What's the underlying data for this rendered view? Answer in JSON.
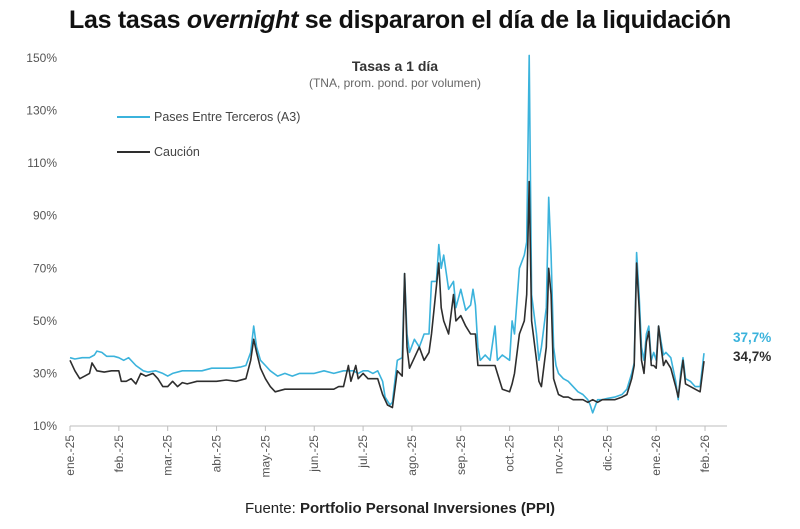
{
  "title": {
    "prefix": "Las tasas ",
    "emph": "overnight",
    "suffix": " se dispararon el día de la liquidación"
  },
  "source": {
    "prefix": "Fuente: ",
    "name": "Portfolio Personal Inversiones (PPI)"
  },
  "chart_data": {
    "type": "line",
    "title": "Tasas a 1 día",
    "subtitle": "(TNA, prom. pond. por volumen)",
    "xlabel": "",
    "ylabel": "",
    "ylim": [
      10,
      150
    ],
    "yticks": [
      10,
      30,
      50,
      70,
      90,
      110,
      130,
      150
    ],
    "ytick_labels": [
      "10%",
      "30%",
      "50%",
      "70%",
      "90%",
      "110%",
      "130%",
      "150%"
    ],
    "xlim": [
      0,
      13.45
    ],
    "xtick_labels": [
      "ene.-25",
      "feb.-25",
      "mar.-25",
      "abr.-25",
      "may.-25",
      "jun.-25",
      "jul.-25",
      "ago.-25",
      "sep.-25",
      "oct.-25",
      "nov.-25",
      "dic.-25",
      "ene.-26",
      "feb.-26"
    ],
    "legend_position": "top-left",
    "series": [
      {
        "name": "Pases Entre Terceros (A3)",
        "color": "#3bb3dc",
        "end_label": "37,7%",
        "points": [
          [
            0.0,
            36
          ],
          [
            0.1,
            35.5
          ],
          [
            0.25,
            36
          ],
          [
            0.4,
            36
          ],
          [
            0.5,
            37
          ],
          [
            0.55,
            38.5
          ],
          [
            0.65,
            38
          ],
          [
            0.75,
            36.5
          ],
          [
            0.9,
            36.5
          ],
          [
            1.0,
            36
          ],
          [
            1.1,
            35
          ],
          [
            1.2,
            36
          ],
          [
            1.35,
            33
          ],
          [
            1.5,
            31
          ],
          [
            1.6,
            30.5
          ],
          [
            1.75,
            31
          ],
          [
            1.9,
            30
          ],
          [
            2.0,
            29
          ],
          [
            2.1,
            30
          ],
          [
            2.3,
            31
          ],
          [
            2.5,
            31
          ],
          [
            2.7,
            31
          ],
          [
            2.9,
            32
          ],
          [
            3.1,
            32
          ],
          [
            3.3,
            32
          ],
          [
            3.5,
            32.5
          ],
          [
            3.6,
            33
          ],
          [
            3.7,
            38
          ],
          [
            3.76,
            48
          ],
          [
            3.82,
            40
          ],
          [
            3.9,
            35
          ],
          [
            4.0,
            33
          ],
          [
            4.1,
            31
          ],
          [
            4.25,
            29
          ],
          [
            4.4,
            30
          ],
          [
            4.55,
            29
          ],
          [
            4.7,
            30
          ],
          [
            4.85,
            30
          ],
          [
            5.0,
            30
          ],
          [
            5.2,
            31
          ],
          [
            5.4,
            30
          ],
          [
            5.6,
            31
          ],
          [
            5.8,
            31
          ],
          [
            5.9,
            30
          ],
          [
            6.0,
            31
          ],
          [
            6.1,
            31
          ],
          [
            6.2,
            30
          ],
          [
            6.3,
            31
          ],
          [
            6.4,
            27
          ],
          [
            6.45,
            21
          ],
          [
            6.55,
            18
          ],
          [
            6.6,
            19
          ],
          [
            6.7,
            35
          ],
          [
            6.8,
            36
          ],
          [
            6.85,
            68
          ],
          [
            6.9,
            45
          ],
          [
            6.95,
            38
          ],
          [
            7.05,
            43
          ],
          [
            7.15,
            40
          ],
          [
            7.25,
            45
          ],
          [
            7.35,
            45
          ],
          [
            7.4,
            65
          ],
          [
            7.5,
            65
          ],
          [
            7.55,
            79
          ],
          [
            7.6,
            70
          ],
          [
            7.65,
            75
          ],
          [
            7.75,
            62
          ],
          [
            7.85,
            65
          ],
          [
            7.9,
            55
          ],
          [
            8.0,
            62
          ],
          [
            8.1,
            54
          ],
          [
            8.2,
            56
          ],
          [
            8.25,
            62
          ],
          [
            8.3,
            56
          ],
          [
            8.35,
            40
          ],
          [
            8.4,
            35
          ],
          [
            8.5,
            37
          ],
          [
            8.6,
            35
          ],
          [
            8.7,
            48
          ],
          [
            8.75,
            35
          ],
          [
            8.85,
            37
          ],
          [
            9.0,
            35
          ],
          [
            9.05,
            50
          ],
          [
            9.1,
            45
          ],
          [
            9.2,
            70
          ],
          [
            9.3,
            75
          ],
          [
            9.35,
            80
          ],
          [
            9.4,
            151
          ],
          [
            9.45,
            60
          ],
          [
            9.55,
            45
          ],
          [
            9.6,
            35
          ],
          [
            9.65,
            40
          ],
          [
            9.75,
            55
          ],
          [
            9.8,
            97
          ],
          [
            9.85,
            75
          ],
          [
            9.9,
            40
          ],
          [
            9.95,
            33
          ],
          [
            10.0,
            30
          ],
          [
            10.1,
            28
          ],
          [
            10.2,
            27
          ],
          [
            10.3,
            25
          ],
          [
            10.4,
            23
          ],
          [
            10.5,
            22
          ],
          [
            10.6,
            20
          ],
          [
            10.65,
            18
          ],
          [
            10.7,
            15
          ],
          [
            10.8,
            20
          ],
          [
            10.9,
            20
          ],
          [
            11.0,
            20.5
          ],
          [
            11.15,
            21
          ],
          [
            11.3,
            22
          ],
          [
            11.4,
            24
          ],
          [
            11.5,
            30
          ],
          [
            11.55,
            34
          ],
          [
            11.6,
            76
          ],
          [
            11.65,
            60
          ],
          [
            11.7,
            40
          ],
          [
            11.75,
            35
          ],
          [
            11.8,
            45
          ],
          [
            11.85,
            48
          ],
          [
            11.9,
            35
          ],
          [
            11.95,
            38
          ],
          [
            12.0,
            35
          ],
          [
            12.05,
            48
          ],
          [
            12.1,
            42
          ],
          [
            12.15,
            37
          ],
          [
            12.2,
            38
          ],
          [
            12.3,
            36
          ],
          [
            12.4,
            27
          ],
          [
            12.45,
            20
          ],
          [
            12.5,
            30
          ],
          [
            12.55,
            36
          ],
          [
            12.6,
            28
          ],
          [
            12.7,
            27
          ],
          [
            12.8,
            25
          ],
          [
            12.9,
            25
          ],
          [
            12.98,
            37.7
          ]
        ]
      },
      {
        "name": "Caución",
        "color": "#2e2e2e",
        "end_label": "34,7%",
        "points": [
          [
            0.0,
            35
          ],
          [
            0.1,
            31
          ],
          [
            0.2,
            28
          ],
          [
            0.3,
            29
          ],
          [
            0.4,
            30
          ],
          [
            0.45,
            34
          ],
          [
            0.55,
            31
          ],
          [
            0.7,
            30.5
          ],
          [
            0.85,
            31
          ],
          [
            1.0,
            31
          ],
          [
            1.05,
            27
          ],
          [
            1.15,
            27
          ],
          [
            1.25,
            28
          ],
          [
            1.35,
            26
          ],
          [
            1.45,
            30
          ],
          [
            1.55,
            29
          ],
          [
            1.7,
            30
          ],
          [
            1.8,
            28
          ],
          [
            1.9,
            25
          ],
          [
            2.0,
            25
          ],
          [
            2.1,
            27
          ],
          [
            2.2,
            25
          ],
          [
            2.3,
            26.5
          ],
          [
            2.4,
            26
          ],
          [
            2.6,
            27
          ],
          [
            2.8,
            27
          ],
          [
            3.0,
            27
          ],
          [
            3.2,
            27.5
          ],
          [
            3.4,
            27
          ],
          [
            3.6,
            28
          ],
          [
            3.7,
            35
          ],
          [
            3.76,
            43
          ],
          [
            3.82,
            38
          ],
          [
            3.9,
            32
          ],
          [
            4.0,
            28
          ],
          [
            4.1,
            25
          ],
          [
            4.2,
            23
          ],
          [
            4.4,
            24
          ],
          [
            4.6,
            24
          ],
          [
            4.8,
            24
          ],
          [
            5.0,
            24
          ],
          [
            5.2,
            24
          ],
          [
            5.4,
            24
          ],
          [
            5.5,
            25
          ],
          [
            5.6,
            25
          ],
          [
            5.7,
            33
          ],
          [
            5.75,
            27
          ],
          [
            5.85,
            33
          ],
          [
            5.9,
            28
          ],
          [
            6.0,
            30
          ],
          [
            6.1,
            28
          ],
          [
            6.3,
            28
          ],
          [
            6.4,
            22
          ],
          [
            6.5,
            18
          ],
          [
            6.6,
            17
          ],
          [
            6.7,
            31
          ],
          [
            6.8,
            29
          ],
          [
            6.85,
            68
          ],
          [
            6.9,
            40
          ],
          [
            6.95,
            32
          ],
          [
            7.05,
            36
          ],
          [
            7.15,
            40
          ],
          [
            7.25,
            35
          ],
          [
            7.35,
            38
          ],
          [
            7.4,
            45
          ],
          [
            7.55,
            72
          ],
          [
            7.6,
            55
          ],
          [
            7.65,
            50
          ],
          [
            7.75,
            45
          ],
          [
            7.85,
            60
          ],
          [
            7.9,
            50
          ],
          [
            8.0,
            52
          ],
          [
            8.1,
            48
          ],
          [
            8.2,
            45
          ],
          [
            8.3,
            45
          ],
          [
            8.35,
            33
          ],
          [
            8.5,
            33
          ],
          [
            8.7,
            33
          ],
          [
            8.75,
            30
          ],
          [
            8.85,
            24
          ],
          [
            9.0,
            23
          ],
          [
            9.05,
            26
          ],
          [
            9.1,
            30
          ],
          [
            9.2,
            45
          ],
          [
            9.3,
            50
          ],
          [
            9.35,
            60
          ],
          [
            9.4,
            103
          ],
          [
            9.45,
            50
          ],
          [
            9.55,
            35
          ],
          [
            9.6,
            27
          ],
          [
            9.65,
            25
          ],
          [
            9.75,
            40
          ],
          [
            9.8,
            70
          ],
          [
            9.85,
            60
          ],
          [
            9.9,
            28
          ],
          [
            9.95,
            25
          ],
          [
            10.0,
            22
          ],
          [
            10.1,
            21
          ],
          [
            10.2,
            21
          ],
          [
            10.3,
            20
          ],
          [
            10.4,
            20
          ],
          [
            10.5,
            20
          ],
          [
            10.6,
            19
          ],
          [
            10.7,
            20
          ],
          [
            10.8,
            19
          ],
          [
            10.9,
            20
          ],
          [
            11.0,
            20
          ],
          [
            11.15,
            20
          ],
          [
            11.3,
            21
          ],
          [
            11.4,
            22
          ],
          [
            11.5,
            28
          ],
          [
            11.55,
            33
          ],
          [
            11.6,
            72
          ],
          [
            11.65,
            55
          ],
          [
            11.7,
            35
          ],
          [
            11.75,
            30
          ],
          [
            11.8,
            42
          ],
          [
            11.85,
            46
          ],
          [
            11.9,
            33
          ],
          [
            11.95,
            33
          ],
          [
            12.0,
            32
          ],
          [
            12.05,
            48
          ],
          [
            12.1,
            40
          ],
          [
            12.15,
            33
          ],
          [
            12.2,
            35
          ],
          [
            12.3,
            32
          ],
          [
            12.4,
            25
          ],
          [
            12.45,
            21
          ],
          [
            12.5,
            28
          ],
          [
            12.55,
            35
          ],
          [
            12.6,
            26
          ],
          [
            12.7,
            25
          ],
          [
            12.8,
            24
          ],
          [
            12.9,
            23
          ],
          [
            12.98,
            34.7
          ]
        ]
      }
    ]
  }
}
